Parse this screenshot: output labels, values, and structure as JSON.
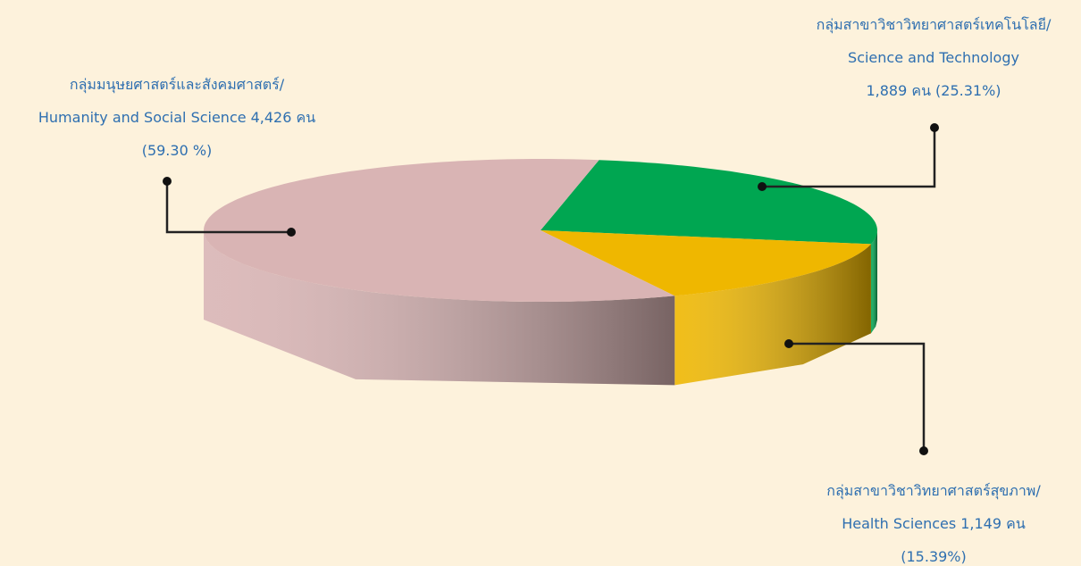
{
  "chart_data": {
    "type": "pie",
    "categories_thai": [
      "กลุ่มมนุษยศาสตร์และสังคมศาสตร์/",
      "กลุ่มสาขาวิชาวิทยาศาสตร์เทคโนโลยี/",
      "กลุ่มสาขาวิชาวิทยาศาสตร์สุขภาพ/"
    ],
    "categories": [
      "Humanity and Social Science",
      "Science and Technology",
      "Health Sciences"
    ],
    "counts": [
      4426,
      1889,
      1149
    ],
    "count_labels": [
      "4,426 คน",
      "1,889 คน",
      "1,149 คน"
    ],
    "values": [
      59.3,
      25.31,
      15.39
    ],
    "value_labels": [
      "(59.30 %)",
      "(25.31%)",
      "(15.39%)"
    ],
    "colors": [
      "#d9b4b4",
      "#00a651",
      "#efb700"
    ]
  }
}
